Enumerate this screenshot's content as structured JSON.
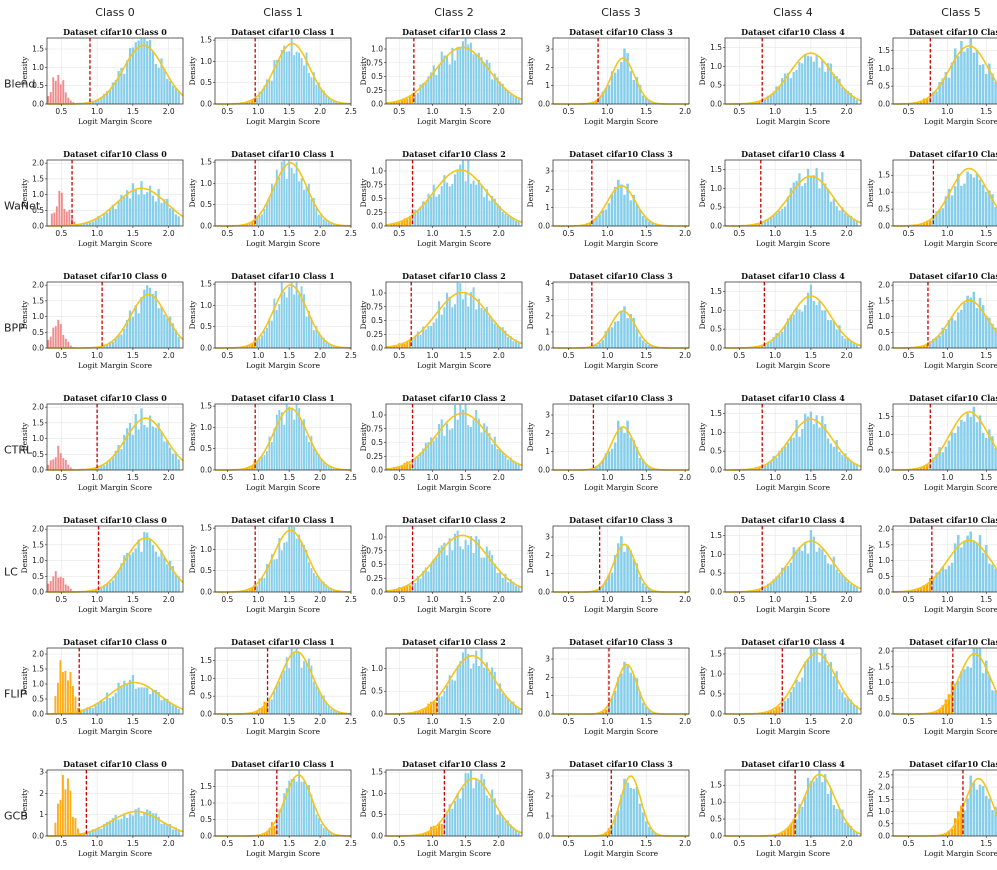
{
  "layout": {
    "columns": [
      "Class 0",
      "Class 1",
      "Class 2",
      "Class 3",
      "Class 4",
      "Class 5"
    ],
    "rows": [
      "Blend",
      "WaNet",
      "BPP",
      "CTRL",
      "LC",
      "FLIP",
      "GCB"
    ]
  },
  "colors": {
    "clean_hist": "#87CEEB",
    "poison_hist": "#F08080",
    "flag_hist": "#FFA500",
    "kde": "#F5C518",
    "threshold": "#CC0000",
    "grid": "#e6e6e6"
  },
  "chart_data": {
    "type": "histogram-grid",
    "panel_title_prefix": "Dataset cifar10 Class",
    "xlabel": "Logit Margin Score",
    "ylabel": "Density",
    "class_axes": [
      {
        "class": 0,
        "xlim": [
          0.3,
          2.2
        ],
        "xticks": [
          0.5,
          1.0,
          1.5,
          2.0
        ]
      },
      {
        "class": 1,
        "xlim": [
          0.3,
          2.5
        ],
        "xticks": [
          0.5,
          1.0,
          1.5,
          2.0,
          2.5
        ]
      },
      {
        "class": 2,
        "xlim": [
          0.3,
          2.35
        ],
        "xticks": [
          0.5,
          1.0,
          1.5,
          2.0
        ]
      },
      {
        "class": 3,
        "xlim": [
          0.3,
          2.05
        ],
        "xticks": [
          0.5,
          1.0,
          1.5,
          2.0
        ]
      },
      {
        "class": 4,
        "xlim": [
          0.3,
          2.2
        ],
        "xticks": [
          0.5,
          1.0,
          1.5,
          2.0
        ]
      },
      {
        "class": 5,
        "xlim": [
          0.3,
          2.05
        ],
        "xticks": [
          0.5,
          1.0,
          1.5,
          2.0
        ]
      }
    ],
    "panels": [
      [
        {
          "ymax": 1.8,
          "yticks": [
            0,
            0.5,
            1.0,
            1.5
          ],
          "threshold": 0.9,
          "kde_mean": 1.65,
          "kde_sd": 0.28,
          "kde_peak": 1.6,
          "poison": "red",
          "poison_center": 0.45,
          "poison_peak": 0.8
        },
        {
          "ymax": 1.55,
          "yticks": [
            0,
            0.5,
            1.0,
            1.5
          ],
          "threshold": 0.95,
          "kde_mean": 1.55,
          "kde_sd": 0.28,
          "kde_peak": 1.42,
          "poison": "none"
        },
        {
          "ymax": 1.2,
          "yticks": [
            0,
            0.25,
            0.5,
            0.75,
            1.0
          ],
          "threshold": 0.72,
          "kde_mean": 1.45,
          "kde_sd": 0.4,
          "kde_peak": 1.03,
          "poison": "orange"
        },
        {
          "ymax": 3.6,
          "yticks": [
            0,
            1,
            2,
            3
          ],
          "threshold": 0.88,
          "kde_mean": 1.2,
          "kde_sd": 0.15,
          "kde_peak": 2.5,
          "poison": "orange"
        },
        {
          "ymax": 1.75,
          "yticks": [
            0,
            0.5,
            1.0,
            1.5
          ],
          "threshold": 0.82,
          "kde_mean": 1.5,
          "kde_sd": 0.3,
          "kde_peak": 1.35,
          "poison": "orange"
        },
        {
          "ymax": 1.85,
          "yticks": [
            0,
            0.5,
            1.0,
            1.5
          ],
          "threshold": 0.78,
          "kde_mean": 1.28,
          "kde_sd": 0.25,
          "kde_peak": 1.63,
          "poison": "orange"
        }
      ],
      [
        {
          "ymax": 2.1,
          "yticks": [
            0,
            0.5,
            1.0,
            1.5,
            2.0
          ],
          "threshold": 0.65,
          "kde_mean": 1.62,
          "kde_sd": 0.35,
          "kde_peak": 1.2,
          "poison": "red",
          "poison_center": 0.5,
          "poison_peak": 1.0
        },
        {
          "ymax": 1.55,
          "yticks": [
            0,
            0.5,
            1.0,
            1.5
          ],
          "threshold": 0.95,
          "kde_mean": 1.52,
          "kde_sd": 0.27,
          "kde_peak": 1.48,
          "poison": "none"
        },
        {
          "ymax": 1.2,
          "yticks": [
            0,
            0.25,
            0.5,
            0.75,
            1.0
          ],
          "threshold": 0.7,
          "kde_mean": 1.42,
          "kde_sd": 0.4,
          "kde_peak": 1.02,
          "poison": "orange"
        },
        {
          "ymax": 3.6,
          "yticks": [
            0,
            1,
            2,
            3
          ],
          "threshold": 0.8,
          "kde_mean": 1.18,
          "kde_sd": 0.18,
          "kde_peak": 2.2,
          "poison": "orange"
        },
        {
          "ymax": 1.75,
          "yticks": [
            0,
            0.5,
            1.0,
            1.5
          ],
          "threshold": 0.8,
          "kde_mean": 1.5,
          "kde_sd": 0.3,
          "kde_peak": 1.32,
          "poison": "orange"
        },
        {
          "ymax": 1.95,
          "yticks": [
            0,
            0.5,
            1.0,
            1.5
          ],
          "threshold": 0.82,
          "kde_mean": 1.28,
          "kde_sd": 0.24,
          "kde_peak": 1.7,
          "poison": "orange"
        }
      ],
      [
        {
          "ymax": 2.1,
          "yticks": [
            0,
            0.5,
            1.0,
            1.5,
            2.0
          ],
          "threshold": 1.07,
          "kde_mean": 1.72,
          "kde_sd": 0.25,
          "kde_peak": 1.7,
          "poison": "red",
          "poison_center": 0.45,
          "poison_peak": 0.8
        },
        {
          "ymax": 1.55,
          "yticks": [
            0,
            0.5,
            1.0,
            1.5
          ],
          "threshold": 0.95,
          "kde_mean": 1.52,
          "kde_sd": 0.27,
          "kde_peak": 1.48,
          "poison": "none"
        },
        {
          "ymax": 1.2,
          "yticks": [
            0,
            0.25,
            0.5,
            0.75,
            1.0
          ],
          "threshold": 0.68,
          "kde_mean": 1.45,
          "kde_sd": 0.4,
          "kde_peak": 1.01,
          "poison": "orange"
        },
        {
          "ymax": 4.1,
          "yticks": [
            0,
            1,
            2,
            3,
            4
          ],
          "threshold": 0.8,
          "kde_mean": 1.2,
          "kde_sd": 0.16,
          "kde_peak": 2.3,
          "poison": "orange"
        },
        {
          "ymax": 1.75,
          "yticks": [
            0,
            0.5,
            1.0,
            1.5
          ],
          "threshold": 0.85,
          "kde_mean": 1.5,
          "kde_sd": 0.28,
          "kde_peak": 1.38,
          "poison": "orange"
        },
        {
          "ymax": 2.1,
          "yticks": [
            0,
            0.5,
            1.0,
            1.5,
            2.0
          ],
          "threshold": 0.75,
          "kde_mean": 1.28,
          "kde_sd": 0.24,
          "kde_peak": 1.52,
          "poison": "orange"
        }
      ],
      [
        {
          "ymax": 2.1,
          "yticks": [
            0,
            0.5,
            1.0,
            1.5,
            2.0
          ],
          "threshold": 1.0,
          "kde_mean": 1.68,
          "kde_sd": 0.28,
          "kde_peak": 1.65,
          "poison": "red",
          "poison_center": 0.45,
          "poison_peak": 0.65
        },
        {
          "ymax": 1.55,
          "yticks": [
            0,
            0.5,
            1.0,
            1.5
          ],
          "threshold": 0.95,
          "kde_mean": 1.52,
          "kde_sd": 0.27,
          "kde_peak": 1.45,
          "poison": "none"
        },
        {
          "ymax": 1.2,
          "yticks": [
            0,
            0.25,
            0.5,
            0.75,
            1.0
          ],
          "threshold": 0.7,
          "kde_mean": 1.45,
          "kde_sd": 0.4,
          "kde_peak": 1.03,
          "poison": "orange"
        },
        {
          "ymax": 3.6,
          "yticks": [
            0,
            1,
            2,
            3
          ],
          "threshold": 0.82,
          "kde_mean": 1.2,
          "kde_sd": 0.15,
          "kde_peak": 2.35,
          "poison": "orange"
        },
        {
          "ymax": 1.75,
          "yticks": [
            0,
            0.5,
            1.0,
            1.5
          ],
          "threshold": 0.82,
          "kde_mean": 1.5,
          "kde_sd": 0.3,
          "kde_peak": 1.35,
          "poison": "orange"
        },
        {
          "ymax": 1.85,
          "yticks": [
            0,
            0.5,
            1.0,
            1.5
          ],
          "threshold": 0.78,
          "kde_mean": 1.28,
          "kde_sd": 0.25,
          "kde_peak": 1.63,
          "poison": "orange"
        }
      ],
      [
        {
          "ymax": 2.1,
          "yticks": [
            0,
            0.5,
            1.0,
            1.5,
            2.0
          ],
          "threshold": 1.02,
          "kde_mean": 1.68,
          "kde_sd": 0.28,
          "kde_peak": 1.72,
          "poison": "red",
          "poison_center": 0.45,
          "poison_peak": 0.7
        },
        {
          "ymax": 1.55,
          "yticks": [
            0,
            0.5,
            1.0,
            1.5
          ],
          "threshold": 0.95,
          "kde_mean": 1.52,
          "kde_sd": 0.27,
          "kde_peak": 1.45,
          "poison": "none"
        },
        {
          "ymax": 1.2,
          "yticks": [
            0,
            0.25,
            0.5,
            0.75,
            1.0
          ],
          "threshold": 0.7,
          "kde_mean": 1.45,
          "kde_sd": 0.4,
          "kde_peak": 1.03,
          "poison": "orange"
        },
        {
          "ymax": 3.6,
          "yticks": [
            0,
            1,
            2,
            3
          ],
          "threshold": 0.9,
          "kde_mean": 1.22,
          "kde_sd": 0.14,
          "kde_peak": 2.6,
          "poison": "orange"
        },
        {
          "ymax": 1.75,
          "yticks": [
            0,
            0.5,
            1.0,
            1.5
          ],
          "threshold": 0.82,
          "kde_mean": 1.5,
          "kde_sd": 0.3,
          "kde_peak": 1.35,
          "poison": "orange"
        },
        {
          "ymax": 2.1,
          "yticks": [
            0,
            0.5,
            1.0,
            1.5,
            2.0
          ],
          "threshold": 0.8,
          "kde_mean": 1.28,
          "kde_sd": 0.28,
          "kde_peak": 1.65,
          "poison": "orange"
        }
      ],
      [
        {
          "ymax": 2.2,
          "yticks": [
            0,
            0.5,
            1.0,
            1.5,
            2.0
          ],
          "threshold": 0.75,
          "kde_mean": 1.52,
          "kde_sd": 0.35,
          "kde_peak": 1.05,
          "poison": "orange",
          "poison_center": 0.55,
          "poison_peak": 2.0
        },
        {
          "ymax": 1.85,
          "yticks": [
            0,
            0.5,
            1.0,
            1.5
          ],
          "threshold": 1.15,
          "kde_mean": 1.62,
          "kde_sd": 0.26,
          "kde_peak": 1.75,
          "poison": "orange"
        },
        {
          "ymax": 1.45,
          "yticks": [
            0,
            0.5,
            1.0
          ],
          "threshold": 1.07,
          "kde_mean": 1.6,
          "kde_sd": 0.33,
          "kde_peak": 1.28,
          "poison": "orange"
        },
        {
          "ymax": 3.6,
          "yticks": [
            0,
            1,
            2,
            3
          ],
          "threshold": 1.02,
          "kde_mean": 1.25,
          "kde_sd": 0.13,
          "kde_peak": 2.7,
          "poison": "orange"
        },
        {
          "ymax": 1.65,
          "yticks": [
            0,
            0.5,
            1.0,
            1.5
          ],
          "threshold": 1.1,
          "kde_mean": 1.58,
          "kde_sd": 0.27,
          "kde_peak": 1.52,
          "poison": "orange"
        },
        {
          "ymax": 2.1,
          "yticks": [
            0,
            0.5,
            1.0,
            1.5,
            2.0
          ],
          "threshold": 1.07,
          "kde_mean": 1.35,
          "kde_sd": 0.2,
          "kde_peak": 1.92,
          "poison": "orange"
        }
      ],
      [
        {
          "ymax": 3.1,
          "yticks": [
            0,
            1,
            2,
            3
          ],
          "threshold": 0.85,
          "kde_mean": 1.55,
          "kde_sd": 0.35,
          "kde_peak": 1.15,
          "poison": "orange",
          "poison_center": 0.55,
          "poison_peak": 2.8
        },
        {
          "ymax": 2.0,
          "yticks": [
            0,
            0.5,
            1.0,
            1.5
          ],
          "threshold": 1.3,
          "kde_mean": 1.65,
          "kde_sd": 0.22,
          "kde_peak": 1.85,
          "poison": "orange"
        },
        {
          "ymax": 1.55,
          "yticks": [
            0,
            0.5,
            1.0,
            1.5
          ],
          "threshold": 1.18,
          "kde_mean": 1.62,
          "kde_sd": 0.3,
          "kde_peak": 1.35,
          "poison": "orange"
        },
        {
          "ymax": 3.3,
          "yticks": [
            0,
            1,
            2,
            3
          ],
          "threshold": 1.05,
          "kde_mean": 1.3,
          "kde_sd": 0.13,
          "kde_peak": 3.0,
          "poison": "orange"
        },
        {
          "ymax": 1.95,
          "yticks": [
            0,
            0.5,
            1.0,
            1.5
          ],
          "threshold": 1.28,
          "kde_mean": 1.62,
          "kde_sd": 0.22,
          "kde_peak": 1.82,
          "poison": "orange"
        },
        {
          "ymax": 2.7,
          "yticks": [
            0,
            0.5,
            1.0,
            1.5,
            2.0,
            2.5
          ],
          "threshold": 1.2,
          "kde_mean": 1.4,
          "kde_sd": 0.17,
          "kde_peak": 2.35,
          "poison": "orange"
        }
      ]
    ]
  }
}
